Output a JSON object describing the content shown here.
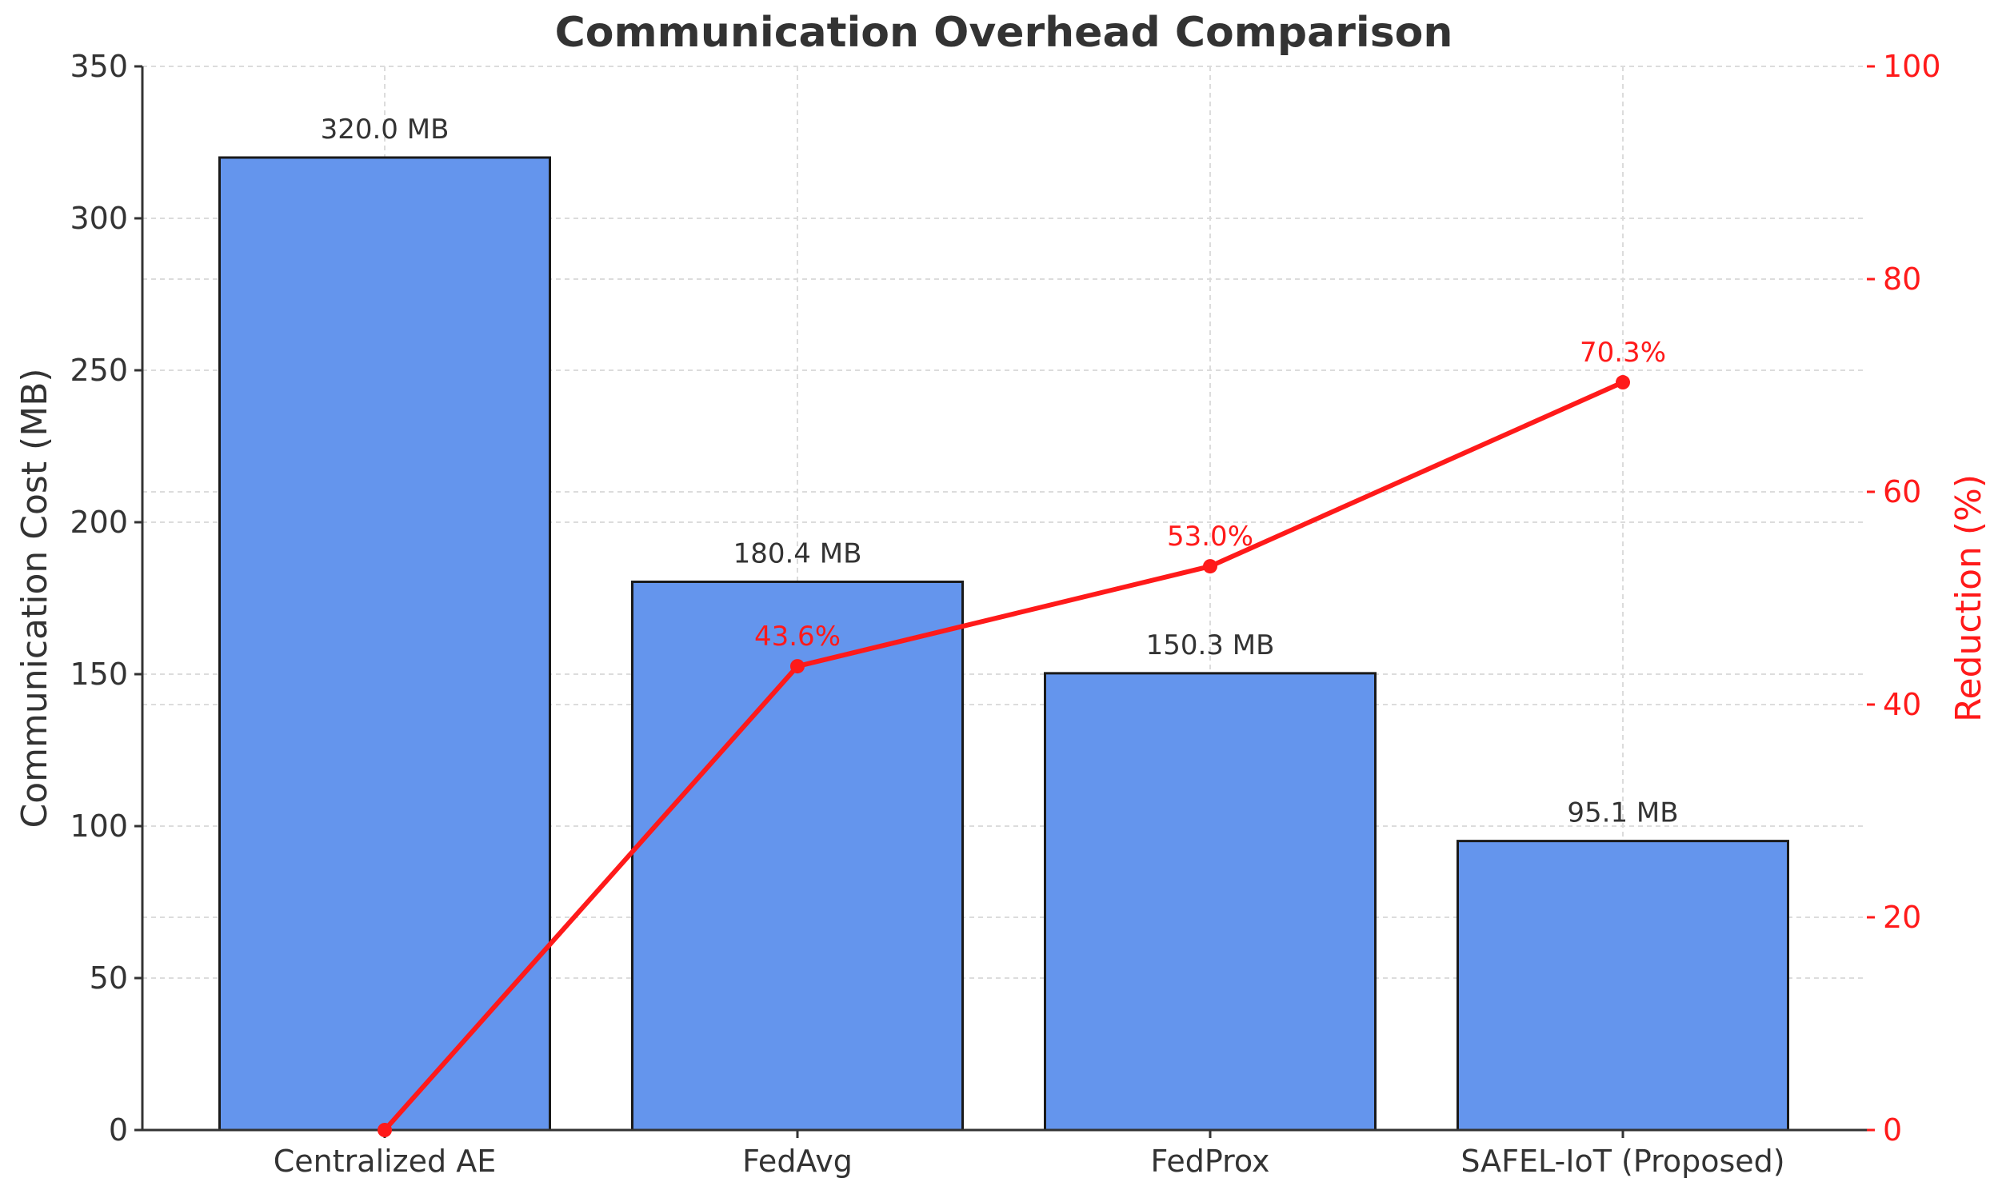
{
  "chart_data": {
    "type": "bar",
    "title": "Communication Overhead Comparison",
    "xlabel": "",
    "ylabel": "Communication Cost (MB)",
    "y2label": "Reduction (%)",
    "categories": [
      "Centralized AE",
      "FedAvg",
      "FedProx",
      "SAFEL-IoT (Proposed)"
    ],
    "series": [
      {
        "type": "bar",
        "axis": "left",
        "values": [
          320.0,
          180.4,
          150.3,
          95.1
        ],
        "labels": [
          "320.0 MB",
          "180.4 MB",
          "150.3 MB",
          "95.1 MB"
        ],
        "color": "#6495ED",
        "edgecolor": "#1a1a1a"
      },
      {
        "type": "line",
        "axis": "right",
        "values": [
          0,
          43.6,
          53.0,
          70.3
        ],
        "labels": [
          "",
          "43.6%",
          "53.0%",
          "70.3%"
        ],
        "color": "#ff1a1a",
        "marker": "circle"
      }
    ],
    "ylim": [
      0,
      350
    ],
    "yticks": [
      0,
      50,
      100,
      150,
      200,
      250,
      300,
      350
    ],
    "y2lim": [
      0,
      100
    ],
    "y2ticks": [
      0,
      20,
      40,
      60,
      80,
      100
    ],
    "grid": true,
    "y2_color": "#ff1a1a"
  }
}
